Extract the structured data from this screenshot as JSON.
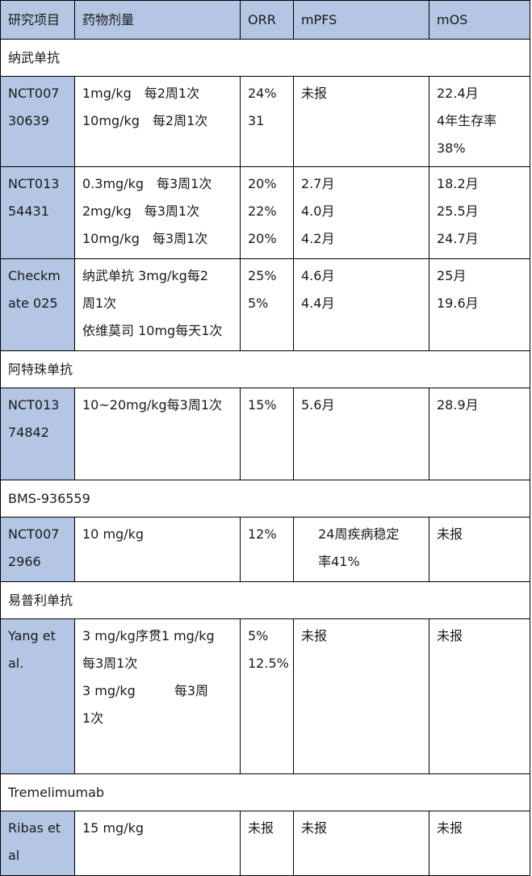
{
  "headers": [
    "研究项目",
    "药物剂量",
    "ORR",
    "mPFS",
    "mOS"
  ],
  "groups": [
    {
      "title": "纳武单抗",
      "rows": [
        {
          "study": [
            "NCT007",
            "30639"
          ],
          "dose": [
            "1mg/kg　每2周1次",
            "10mg/kg　每2周1次"
          ],
          "orr": [
            "24%",
            "31"
          ],
          "mpfs": [
            "未报"
          ],
          "mos": [
            "22.4月",
            "4年生存率",
            "38%"
          ]
        },
        {
          "study": [
            "NCT013",
            "54431"
          ],
          "dose": [
            "0.3mg/kg　每3周1次",
            "2mg/kg　每3周1次",
            "10mg/kg　每3周1次"
          ],
          "orr": [
            "20%",
            "22%",
            "20%"
          ],
          "mpfs": [
            "2.7月",
            "4.0月",
            "4.2月"
          ],
          "mos": [
            "18.2月",
            "25.5月",
            "24.7月"
          ]
        },
        {
          "study": [
            "Checkm",
            "ate 025"
          ],
          "dose": [
            "纳武单抗 3mg/kg每2",
            "周1次",
            "依维莫司 10mg每天1次"
          ],
          "orr": [
            "25%",
            "5%"
          ],
          "mpfs": [
            "4.6月",
            "4.4月"
          ],
          "mos": [
            "25月",
            "19.6月"
          ]
        }
      ]
    },
    {
      "title": "阿特珠单抗",
      "rows": [
        {
          "study": [
            "NCT013",
            "74842"
          ],
          "dose": [
            "10~20mg/kg每3周1次"
          ],
          "orr": [
            "15%"
          ],
          "mpfs": [
            "5.6月"
          ],
          "mos": [
            "28.9月"
          ]
        }
      ]
    },
    {
      "title": "BMS-936559",
      "rows": [
        {
          "study": [
            "NCT007",
            "2966"
          ],
          "dose": [
            "10 mg/kg"
          ],
          "orr": [
            "12%"
          ],
          "mpfs": [
            "　 24周疾病稳定",
            "　 率41%"
          ],
          "mos": [
            "未报"
          ]
        }
      ]
    },
    {
      "title": "易普利单抗",
      "rows": [
        {
          "study": [
            "Yang et",
            " al."
          ],
          "dose": [
            "3 mg/kg序贯1 mg/kg",
            "每3周1次",
            "3 mg/kg　　　每3周",
            "1次"
          ],
          "orr": [
            "5%",
            "12.5%"
          ],
          "mpfs": [
            "未报"
          ],
          "mos": [
            "未报"
          ]
        }
      ]
    },
    {
      "title": "Tremelimumab",
      "rows": [
        {
          "study": [
            "Ribas et",
            " al"
          ],
          "dose": [
            "15 mg/kg"
          ],
          "orr": [
            "未报"
          ],
          "mpfs": [
            "未报"
          ],
          "mos": [
            "未报"
          ]
        }
      ]
    }
  ]
}
